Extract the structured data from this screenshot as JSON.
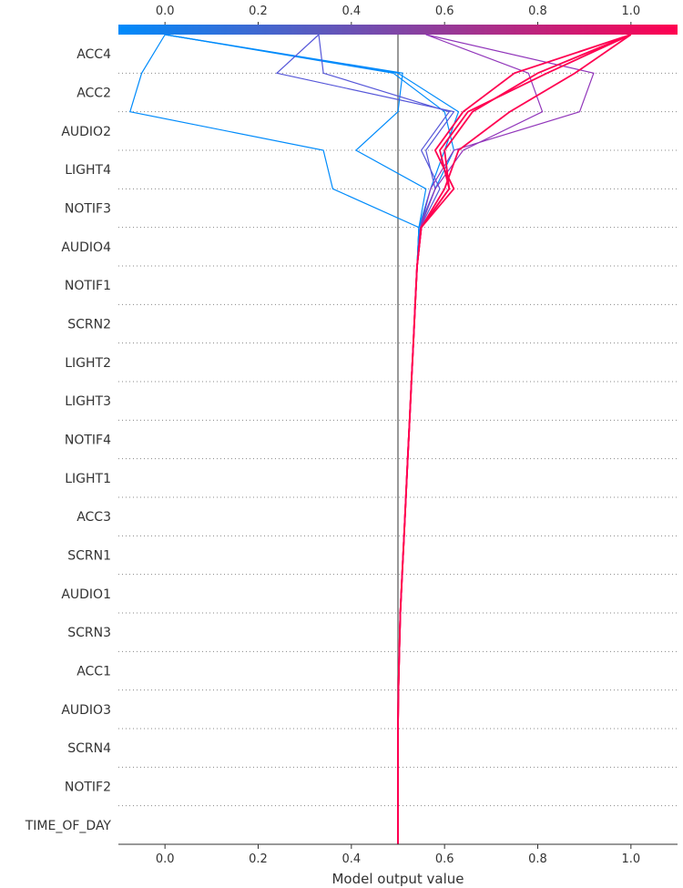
{
  "chart_data": {
    "type": "line",
    "subtype": "decision-plot",
    "xlabel": "Model output value",
    "xlim": [
      -0.1,
      1.1
    ],
    "xticks": [
      0.0,
      0.2,
      0.4,
      0.6,
      0.8,
      1.0
    ],
    "xtick_labels": [
      "0.0",
      "0.2",
      "0.4",
      "0.6",
      "0.8",
      "1.0"
    ],
    "base_value": 0.5,
    "features": [
      "ACC4",
      "ACC2",
      "AUDIO2",
      "LIGHT4",
      "NOTIF3",
      "AUDIO4",
      "NOTIF1",
      "SCRN2",
      "LIGHT2",
      "LIGHT3",
      "NOTIF4",
      "LIGHT1",
      "ACC3",
      "SCRN1",
      "AUDIO1",
      "SCRN3",
      "ACC1",
      "AUDIO3",
      "SCRN4",
      "NOTIF2",
      "TIME_OF_DAY"
    ],
    "colorbar": {
      "ticks": [
        0.0,
        0.2,
        0.4,
        0.6,
        0.8,
        1.0
      ],
      "tick_labels": [
        "0.0",
        "0.2",
        "0.4",
        "0.6",
        "0.8",
        "1.0"
      ],
      "colors": [
        "#008bfb",
        "#ff0051"
      ]
    },
    "grid": "dotted horizontal",
    "series": [
      {
        "output": 0.0,
        "path_top": [
          0.0,
          0.51,
          0.5,
          0.41,
          0.56,
          0.545
        ]
      },
      {
        "output": 0.0,
        "path_top": [
          0.0,
          -0.05,
          -0.075,
          0.34,
          0.36,
          0.545
        ]
      },
      {
        "output": 0.0,
        "path_top": [
          0.0,
          0.49,
          0.6,
          0.62,
          0.58,
          0.545
        ]
      },
      {
        "output": 0.0,
        "path_top": [
          0.0,
          0.5,
          0.63,
          0.6,
          0.57,
          0.545
        ]
      },
      {
        "output": 0.33,
        "path_top": [
          0.33,
          0.24,
          0.62,
          0.56,
          0.58,
          0.548
        ]
      },
      {
        "output": 0.33,
        "path_top": [
          0.33,
          0.34,
          0.61,
          0.55,
          0.59,
          0.548
        ]
      },
      {
        "output": 0.56,
        "path_top": [
          0.56,
          0.92,
          0.89,
          0.62,
          0.57,
          0.548
        ]
      },
      {
        "output": 0.56,
        "path_top": [
          0.56,
          0.78,
          0.81,
          0.64,
          0.58,
          0.548
        ]
      },
      {
        "output": 1.0,
        "path_top": [
          1.0,
          0.8,
          0.66,
          0.6,
          0.61,
          0.55
        ]
      },
      {
        "output": 1.0,
        "path_top": [
          1.0,
          0.75,
          0.64,
          0.58,
          0.62,
          0.55
        ]
      },
      {
        "output": 1.0,
        "path_top": [
          1.0,
          0.82,
          0.65,
          0.59,
          0.61,
          0.55
        ]
      },
      {
        "output": 1.0,
        "path_top": [
          1.0,
          0.88,
          0.74,
          0.63,
          0.6,
          0.55
        ]
      }
    ],
    "shared_tail": [
      0.545,
      0.541,
      0.537,
      0.533,
      0.529,
      0.525,
      0.521,
      0.517,
      0.513,
      0.509,
      0.505,
      0.503,
      0.501,
      0.5,
      0.5,
      0.5
    ]
  }
}
